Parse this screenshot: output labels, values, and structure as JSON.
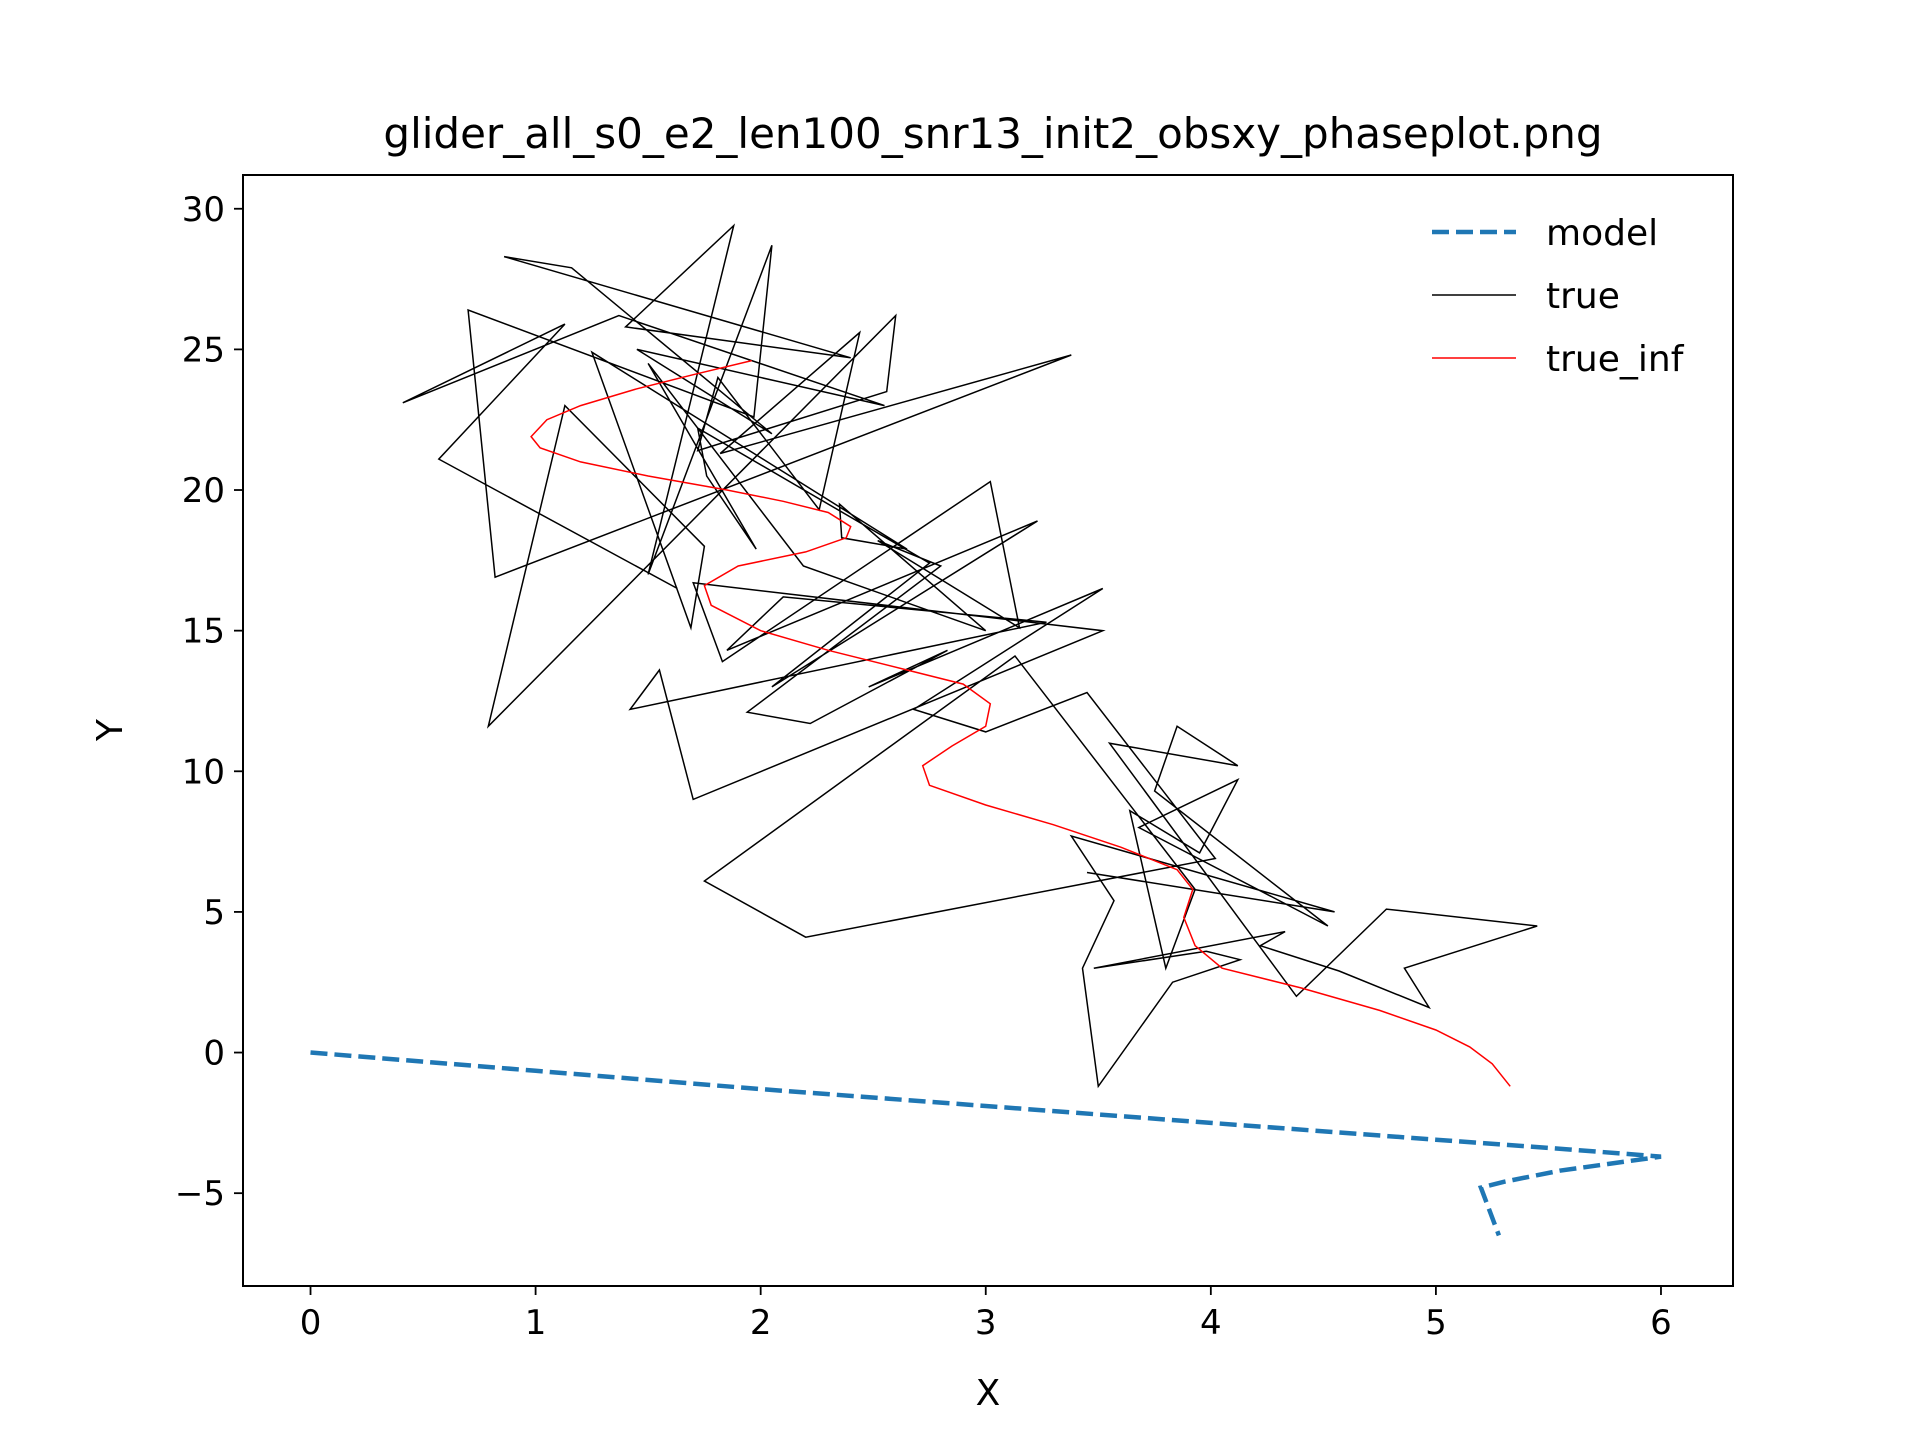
{
  "chart_data": {
    "type": "line",
    "title": "glider_all_s0_e2_len100_snr13_init2_obsxy_phaseplot.png",
    "xlabel": "X",
    "ylabel": "Y",
    "xlim": [
      -0.3,
      6.32
    ],
    "ylim": [
      -8.3,
      31.2
    ],
    "xticks": [
      0,
      1,
      2,
      3,
      4,
      5,
      6
    ],
    "yticks": [
      -5,
      0,
      5,
      10,
      15,
      20,
      25,
      30
    ],
    "ytick_labels": [
      "−5",
      "0",
      "5",
      "10",
      "15",
      "20",
      "25",
      "30"
    ],
    "grid": false,
    "legend_position": "top-right",
    "series": [
      {
        "name": "model",
        "color": "#1f77b4",
        "style": "dashed",
        "x": [
          0,
          1,
          2,
          3,
          4,
          5,
          5.6,
          6.0,
          5.55,
          5.3,
          5.2,
          5.28
        ],
        "y": [
          0,
          -0.65,
          -1.3,
          -1.9,
          -2.5,
          -3.1,
          -3.45,
          -3.7,
          -4.2,
          -4.6,
          -4.8,
          -6.5
        ]
      },
      {
        "name": "true",
        "color": "#000000",
        "style": "solid",
        "x": [
          1.63,
          0.57,
          1.13,
          0.41,
          1.37,
          2.55,
          1.45,
          2.05,
          1.16,
          0.86,
          2.4,
          1.4,
          1.88,
          1.5,
          2.05,
          1.97,
          0.7,
          0.82,
          3.38,
          1.82,
          2.44,
          2.26,
          1.81,
          1.72,
          2.56,
          2.6,
          0.79,
          1.13,
          1.75,
          1.69,
          1.25,
          2.65,
          2.36,
          2.35,
          3.0,
          2.19,
          1.5,
          1.98,
          1.76,
          1.72,
          2.75,
          2.05,
          3.23,
          1.85,
          2.1,
          3.27,
          1.42,
          1.55,
          1.7,
          3.52,
          1.7,
          1.83,
          3.02,
          3.15,
          2.52,
          2.8,
          1.94,
          2.22,
          2.83,
          2.48,
          3.52,
          2.68,
          3.0,
          3.45,
          4.02,
          2.2,
          1.75,
          3.13,
          3.93,
          3.8,
          3.64,
          3.95,
          4.12,
          3.68,
          4.52,
          3.75,
          3.85,
          4.12,
          3.55,
          4.38,
          4.78,
          5.45,
          4.86,
          4.97,
          4.57,
          4.22,
          4.33,
          3.48,
          3.98,
          4.13,
          3.83,
          3.5,
          3.43,
          3.57,
          3.38,
          4.55,
          3.45
        ],
        "y": [
          16.5,
          21.1,
          25.9,
          23.1,
          26.2,
          23.0,
          25.0,
          22.0,
          27.9,
          28.3,
          24.7,
          25.8,
          29.4,
          17.0,
          28.7,
          22.6,
          26.4,
          16.9,
          24.8,
          21.3,
          25.6,
          19.3,
          24.0,
          21.4,
          23.5,
          26.2,
          11.6,
          23.0,
          18.0,
          15.1,
          24.9,
          17.9,
          18.3,
          19.5,
          15.0,
          17.3,
          24.5,
          17.9,
          20.5,
          22.2,
          17.4,
          13.0,
          18.9,
          14.3,
          16.2,
          15.3,
          12.2,
          13.6,
          9.0,
          15.0,
          16.7,
          13.9,
          20.3,
          15.1,
          18.2,
          17.3,
          12.1,
          11.7,
          14.3,
          13.0,
          16.5,
          12.2,
          11.4,
          12.8,
          6.9,
          4.1,
          6.1,
          14.1,
          5.8,
          3.0,
          8.6,
          7.1,
          9.7,
          8.0,
          4.5,
          9.3,
          11.6,
          10.2,
          11.0,
          2.0,
          5.1,
          4.5,
          3.0,
          1.6,
          2.9,
          3.8,
          4.3,
          3.0,
          3.6,
          3.3,
          2.5,
          -1.2,
          3.0,
          5.4,
          7.7,
          5.0,
          6.4
        ]
      },
      {
        "name": "true_inf",
        "color": "#ff0000",
        "style": "solid",
        "x": [
          1.96,
          1.7,
          1.45,
          1.2,
          1.05,
          0.98,
          1.02,
          1.2,
          1.5,
          1.85,
          2.1,
          2.3,
          2.4,
          2.38,
          2.2,
          1.9,
          1.75,
          1.78,
          2.0,
          2.3,
          2.65,
          2.9,
          3.02,
          3.0,
          2.85,
          2.72,
          2.75,
          3.0,
          3.3,
          3.6,
          3.85,
          3.92,
          3.88,
          3.93,
          4.05,
          4.4,
          4.75,
          5.0,
          5.15,
          5.25,
          5.33
        ],
        "y": [
          24.6,
          24.1,
          23.6,
          23.0,
          22.5,
          21.9,
          21.5,
          21.0,
          20.5,
          20.0,
          19.6,
          19.2,
          18.7,
          18.3,
          17.8,
          17.3,
          16.6,
          15.9,
          15.0,
          14.3,
          13.6,
          13.1,
          12.4,
          11.6,
          10.9,
          10.2,
          9.5,
          8.8,
          8.1,
          7.3,
          6.5,
          5.8,
          4.8,
          3.8,
          3.0,
          2.3,
          1.5,
          0.8,
          0.2,
          -0.4,
          -1.2
        ]
      }
    ]
  }
}
